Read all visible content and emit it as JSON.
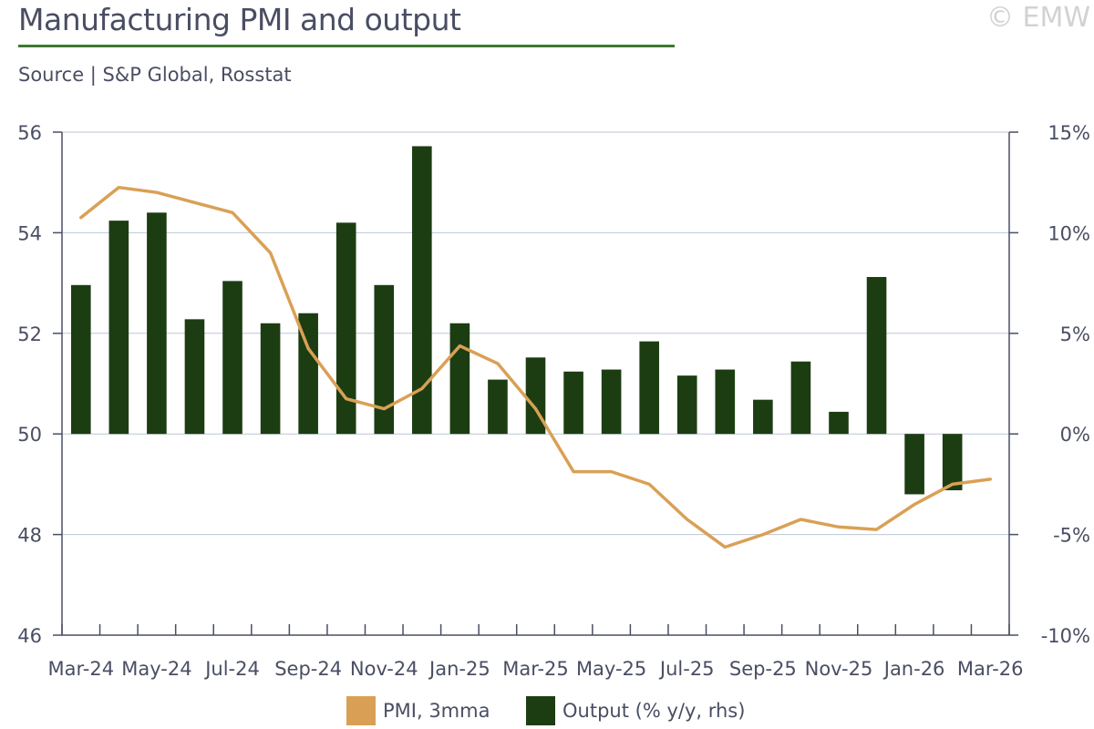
{
  "header": {
    "title": "Manufacturing PMI and output",
    "source": "Source | S&P Global, Rosstat",
    "copyright": "© EMW"
  },
  "colors": {
    "pmi": "#d9a055",
    "output": "#1c3d12",
    "grid": "#bcc7d6",
    "axis": "#4a4e63",
    "title_rule": "#3c7a2e"
  },
  "chart_data": {
    "type": "bar+line",
    "title": "Manufacturing PMI and output",
    "categories": [
      "Mar-24",
      "Apr-24",
      "May-24",
      "Jun-24",
      "Jul-24",
      "Aug-24",
      "Sep-24",
      "Oct-24",
      "Nov-24",
      "Dec-24",
      "Jan-25",
      "Feb-25",
      "Mar-25",
      "Apr-25",
      "May-25",
      "Jun-25",
      "Jul-25",
      "Aug-25",
      "Sep-25",
      "Oct-25",
      "Nov-25",
      "Dec-25",
      "Jan-26",
      "Feb-26",
      "Mar-26"
    ],
    "x_tick_labels": [
      "Mar-24",
      "May-24",
      "Jul-24",
      "Sep-24",
      "Nov-24",
      "Jan-25",
      "Mar-25",
      "May-25",
      "Jul-25",
      "Sep-25",
      "Nov-25",
      "Jan-26",
      "Mar-26"
    ],
    "series": [
      {
        "name": "PMI, 3mma",
        "type": "line",
        "axis": "left",
        "values": [
          54.3,
          54.9,
          54.8,
          54.6,
          54.4,
          53.6,
          51.7,
          50.7,
          50.5,
          50.9,
          51.75,
          51.4,
          50.5,
          49.25,
          49.25,
          49.0,
          48.3,
          47.75,
          48.0,
          48.3,
          48.15,
          48.1,
          48.6,
          49.0,
          49.1
        ]
      },
      {
        "name": "Output (% y/y, rhs)",
        "type": "bar",
        "axis": "right",
        "values": [
          7.4,
          10.6,
          11.0,
          5.7,
          7.6,
          5.5,
          6.0,
          10.5,
          7.4,
          14.3,
          5.5,
          2.7,
          3.8,
          3.1,
          3.2,
          4.6,
          2.9,
          3.2,
          1.7,
          3.6,
          1.1,
          7.8,
          -3.0,
          -2.8,
          null
        ]
      }
    ],
    "yaxis_left": {
      "min": 46,
      "max": 56,
      "ticks": [
        "46",
        "48",
        "50",
        "52",
        "54",
        "56"
      ]
    },
    "yaxis_right": {
      "min": -10,
      "max": 15,
      "ticks": [
        "-10%",
        "-5%",
        "0%",
        "5%",
        "10%",
        "15%"
      ]
    },
    "legend_position": "bottom-center",
    "grid": true
  }
}
